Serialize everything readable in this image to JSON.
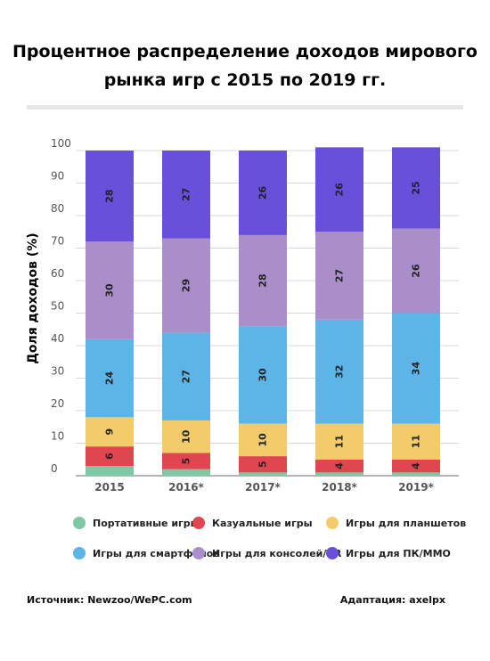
{
  "title_lines": [
    "Процентное распределение доходов мирового",
    "рынка игр с 2015 по 2019 гг."
  ],
  "source": "Источник: Newzoo/WePC.com",
  "adaptation": "Адаптация: axelpx",
  "chart_data": {
    "type": "bar",
    "stacked": true,
    "title": "Процентное распределение доходов мирового рынка игр с 2015 по 2019 гг.",
    "ylabel": "Доля доходов (%)",
    "xlabel": "",
    "ylim": [
      0,
      100
    ],
    "yticks": [
      0,
      10,
      20,
      30,
      40,
      50,
      60,
      70,
      80,
      90,
      100
    ],
    "grid": true,
    "legend_position": "bottom",
    "categories": [
      "2015",
      "2016*",
      "2017*",
      "2018*",
      "2019*"
    ],
    "series": [
      {
        "name": "Портативные игры",
        "color": "#7fc8a4",
        "values": [
          3,
          2,
          1,
          1,
          1
        ],
        "labels": [
          "",
          "",
          "",
          "",
          ""
        ]
      },
      {
        "name": "Казуальные игры",
        "color": "#e0464f",
        "values": [
          6,
          5,
          5,
          4,
          4
        ],
        "labels": [
          "6",
          "5",
          "5",
          "4",
          "4"
        ]
      },
      {
        "name": "Игры для планшетов",
        "color": "#f2cc6b",
        "values": [
          9,
          10,
          10,
          11,
          11
        ],
        "labels": [
          "9",
          "10",
          "10",
          "11",
          "11"
        ]
      },
      {
        "name": "Игры для смартфонов",
        "color": "#5db4e6",
        "values": [
          24,
          27,
          30,
          32,
          34
        ],
        "labels": [
          "24",
          "27",
          "30",
          "32",
          "34"
        ]
      },
      {
        "name": "Игры для консолей/VR",
        "color": "#a98ec9",
        "values": [
          30,
          29,
          28,
          27,
          26
        ],
        "labels": [
          "30",
          "29",
          "28",
          "27",
          "26"
        ]
      },
      {
        "name": "Игры для ПК/ММО",
        "color": "#6a4fdb",
        "values": [
          28,
          27,
          26,
          26,
          25
        ],
        "labels": [
          "28",
          "27",
          "26",
          "26",
          "25"
        ]
      }
    ]
  }
}
